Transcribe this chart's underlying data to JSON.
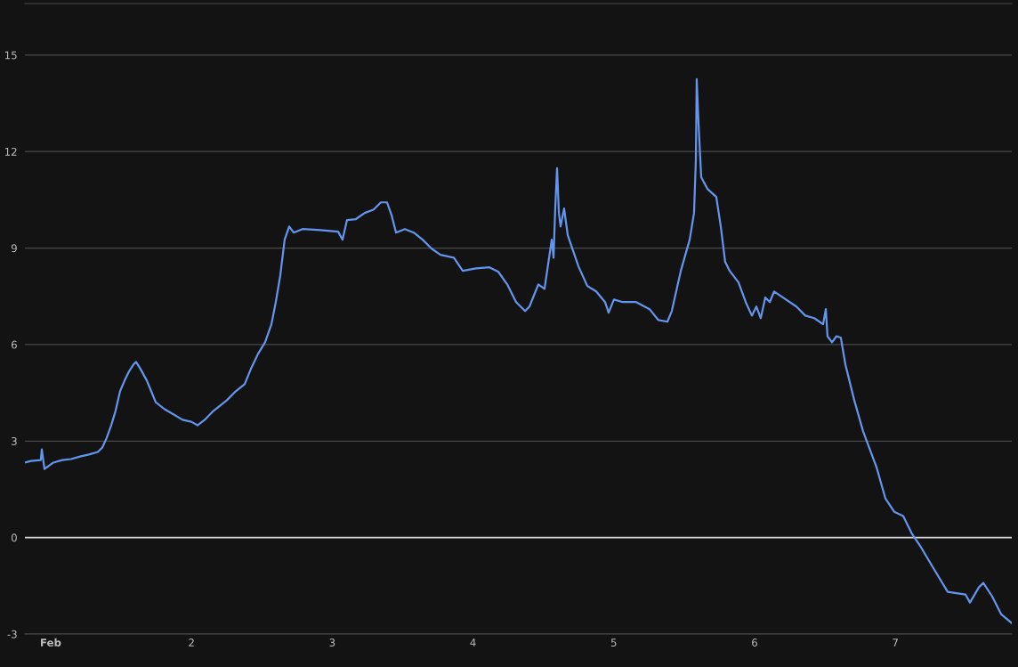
{
  "chart_data": {
    "type": "line",
    "x": [
      0.817,
      0.861,
      0.93,
      0.937,
      0.956,
      1.019,
      1.082,
      1.145,
      1.209,
      1.272,
      1.335,
      1.367,
      1.398,
      1.43,
      1.461,
      1.493,
      1.525,
      1.556,
      1.588,
      1.607,
      1.638,
      1.683,
      1.714,
      1.746,
      1.809,
      1.872,
      1.936,
      1.999,
      2.043,
      2.094,
      2.157,
      2.252,
      2.315,
      2.378,
      2.422,
      2.473,
      2.523,
      2.568,
      2.599,
      2.631,
      2.662,
      2.694,
      2.726,
      2.789,
      2.915,
      3.042,
      3.073,
      3.105,
      3.168,
      3.231,
      3.295,
      3.345,
      3.389,
      3.421,
      3.453,
      3.516,
      3.579,
      3.642,
      3.706,
      3.769,
      3.864,
      3.927,
      4.022,
      4.117,
      4.18,
      4.243,
      4.306,
      4.37,
      4.401,
      4.464,
      4.508,
      4.559,
      4.572,
      4.584,
      4.597,
      4.61,
      4.622,
      4.647,
      4.673,
      4.749,
      4.812,
      4.875,
      4.938,
      4.963,
      5.001,
      5.064,
      5.159,
      5.254,
      5.317,
      5.381,
      5.412,
      5.476,
      5.539,
      5.57,
      5.583,
      5.589,
      5.602,
      5.621,
      5.665,
      5.728,
      5.76,
      5.791,
      5.823,
      5.886,
      5.937,
      5.981,
      6.013,
      6.044,
      6.076,
      6.108,
      6.139,
      6.202,
      6.297,
      6.36,
      6.424,
      6.487,
      6.506,
      6.518,
      6.55,
      6.582,
      6.613,
      6.645,
      6.708,
      6.771,
      6.866,
      6.929,
      6.992,
      7.056,
      7.119,
      7.182,
      7.277,
      7.372,
      7.498,
      7.53,
      7.593,
      7.625,
      7.688,
      7.751,
      7.827
    ],
    "series": [
      {
        "color": "#6495ed",
        "values": [
          2.33,
          2.38,
          2.41,
          2.74,
          2.13,
          2.33,
          2.41,
          2.44,
          2.52,
          2.58,
          2.66,
          2.8,
          3.1,
          3.49,
          3.94,
          4.55,
          4.88,
          5.16,
          5.38,
          5.46,
          5.24,
          4.88,
          4.55,
          4.21,
          3.99,
          3.83,
          3.66,
          3.6,
          3.49,
          3.66,
          3.94,
          4.27,
          4.55,
          4.77,
          5.24,
          5.71,
          6.07,
          6.63,
          7.32,
          8.15,
          9.26,
          9.67,
          9.48,
          9.59,
          9.56,
          9.51,
          9.26,
          9.87,
          9.9,
          10.09,
          10.2,
          10.42,
          10.42,
          10.03,
          9.48,
          9.59,
          9.48,
          9.26,
          8.98,
          8.79,
          8.7,
          8.29,
          8.37,
          8.4,
          8.26,
          7.87,
          7.32,
          7.04,
          7.18,
          7.87,
          7.73,
          9.26,
          8.7,
          10.23,
          11.48,
          10.09,
          9.67,
          10.23,
          9.4,
          8.43,
          7.82,
          7.65,
          7.32,
          6.99,
          7.4,
          7.32,
          7.32,
          7.1,
          6.76,
          6.71,
          7.04,
          8.29,
          9.26,
          10.09,
          11.75,
          14.25,
          12.86,
          11.2,
          10.84,
          10.59,
          9.67,
          8.57,
          8.29,
          7.93,
          7.32,
          6.9,
          7.18,
          6.82,
          7.46,
          7.32,
          7.65,
          7.46,
          7.18,
          6.9,
          6.82,
          6.63,
          7.1,
          6.26,
          6.07,
          6.26,
          6.21,
          5.38,
          4.27,
          3.3,
          2.19,
          1.22,
          0.8,
          0.67,
          0.11,
          -0.3,
          -1.0,
          -1.69,
          -1.77,
          -2.02,
          -1.55,
          -1.41,
          -1.83,
          -2.38,
          -2.66
        ]
      }
    ],
    "xlim": [
      0.817,
      7.827
    ],
    "xticks": [
      {
        "value": 1,
        "label": "Feb"
      },
      2,
      3,
      4,
      5,
      6,
      7
    ],
    "ylim": [
      -3,
      16.6
    ],
    "yticks": [
      -3,
      0,
      3,
      6,
      9,
      12,
      15
    ],
    "ref_lines": [
      {
        "axis": "y",
        "value": 0,
        "color": "#d8d8d8"
      }
    ],
    "grid": "y",
    "marker": "none",
    "line_style": "solid"
  }
}
